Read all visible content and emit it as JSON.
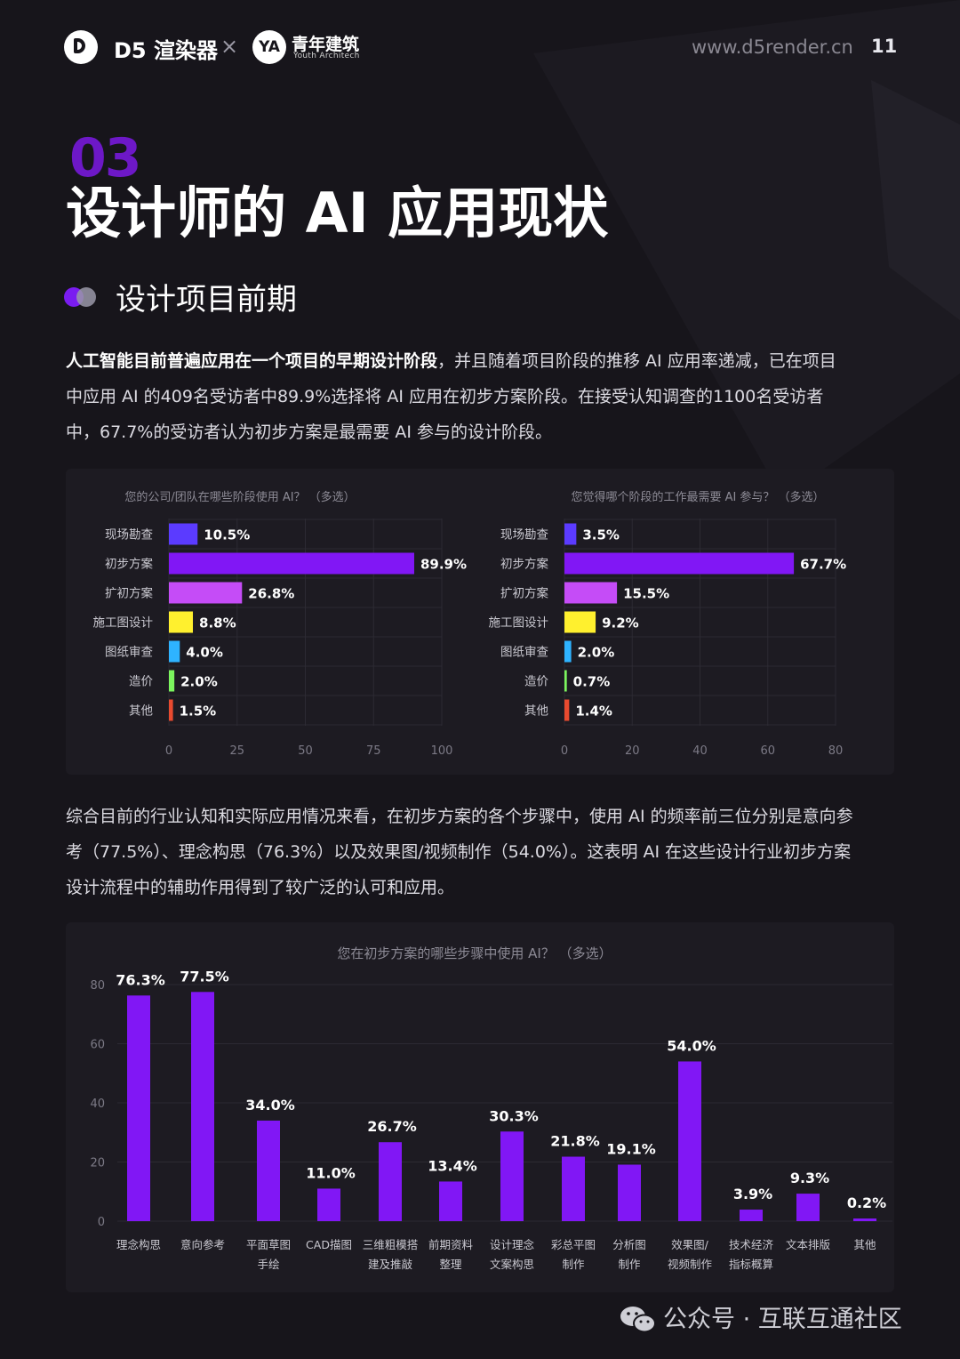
{
  "header": {
    "brand_d5": "D5 渲染器",
    "cross": "×",
    "logo_ya": "YA",
    "brand_ya": "青年建筑",
    "brand_ya_sub": "Youth Architech",
    "url": "www.d5render.cn",
    "page_number": "11"
  },
  "section": {
    "number": "03",
    "title": "设计师的 AI 应用现状",
    "subtitle": "设计项目前期"
  },
  "paragraph1": {
    "bold": "人工智能目前普遍应用在一个项目的早期设计阶段",
    "line1_rest": "，并且随着项目阶段的推移 AI 应用率递减，已在项目",
    "line2": "中应用 AI 的409名受访者中89.9%选择将 AI 应用在初步方案阶段。在接受认知调查的1100名受访者",
    "line3": "中，67.7%的受访者认为初步方案是最需要 AI 参与的设计阶段。"
  },
  "paragraph2": {
    "line1": "综合目前的行业认知和实际应用情况来看，在初步方案的各个步骤中，使用 AI 的频率前三位分别是意向参",
    "line2": "考（77.5%）、理念构思（76.3%）以及效果图/视频制作（54.0%）。这表明 AI 在这些设计行业初步方案",
    "line3": "设计流程中的辅助作用得到了较广泛的认可和应用。"
  },
  "footer": {
    "text": "公众号 · 互联互通社区"
  },
  "colors": {
    "background": "#17151b",
    "card": "#1d1b22",
    "accent_purple": "#8117f5",
    "violet": "#5b3bff",
    "magenta": "#c54cf7",
    "yellow": "#fff02e",
    "cyan": "#2eb3ff",
    "green": "#7cf55e",
    "red": "#e84a2f"
  },
  "chart_data": [
    {
      "type": "bar",
      "orientation": "horizontal",
      "title": "您的公司/团队在哪些阶段使用 AI？ （多选）",
      "categories": [
        "现场勘查",
        "初步方案",
        "扩初方案",
        "施工图设计",
        "图纸审查",
        "造价",
        "其他"
      ],
      "values": [
        10.5,
        89.9,
        26.8,
        8.8,
        4.0,
        2.0,
        1.5
      ],
      "labels": [
        "10.5%",
        "89.9%",
        "26.8%",
        "8.8%",
        "4.0%",
        "2.0%",
        "1.5%"
      ],
      "bar_colors": [
        "#5b3bff",
        "#8117f5",
        "#c54cf7",
        "#fff02e",
        "#2eb3ff",
        "#7cf55e",
        "#e84a2f"
      ],
      "xlim": [
        0,
        100
      ],
      "xticks": [
        0,
        25,
        50,
        75,
        100
      ],
      "grid": true
    },
    {
      "type": "bar",
      "orientation": "horizontal",
      "title": "您觉得哪个阶段的工作最需要 AI 参与？ （多选）",
      "categories": [
        "现场勘查",
        "初步方案",
        "扩初方案",
        "施工图设计",
        "图纸审查",
        "造价",
        "其他"
      ],
      "values": [
        3.5,
        67.7,
        15.5,
        9.2,
        2.0,
        0.7,
        1.4
      ],
      "labels": [
        "3.5%",
        "67.7%",
        "15.5%",
        "9.2%",
        "2.0%",
        "0.7%",
        "1.4%"
      ],
      "bar_colors": [
        "#5b3bff",
        "#8117f5",
        "#c54cf7",
        "#fff02e",
        "#2eb3ff",
        "#7cf55e",
        "#e84a2f"
      ],
      "xlim": [
        0,
        80
      ],
      "xticks": [
        0,
        20,
        40,
        60,
        80
      ],
      "grid": true
    },
    {
      "type": "bar",
      "orientation": "vertical",
      "title": "您在初步方案的哪些步骤中使用 AI？ （多选）",
      "categories": [
        [
          "理念构思"
        ],
        [
          "意向参考"
        ],
        [
          "平面草图",
          "手绘"
        ],
        [
          "CAD描图"
        ],
        [
          "三维粗模搭",
          "建及推敲"
        ],
        [
          "前期资料",
          "整理"
        ],
        [
          "设计理念",
          "文案构思"
        ],
        [
          "彩总平图",
          "制作"
        ],
        [
          "分析图",
          "制作"
        ],
        [
          "效果图/",
          "视频制作"
        ],
        [
          "技术经济",
          "指标概算"
        ],
        [
          "文本排版"
        ],
        [
          "其他"
        ]
      ],
      "values": [
        76.3,
        77.5,
        34.0,
        11.0,
        26.7,
        13.4,
        30.3,
        21.8,
        19.1,
        54.0,
        3.9,
        9.3,
        0.2
      ],
      "labels": [
        "76.3%",
        "77.5%",
        "34.0%",
        "11.0%",
        "26.7%",
        "13.4%",
        "30.3%",
        "21.8%",
        "19.1%",
        "54.0%",
        "3.9%",
        "9.3%",
        "0.2%"
      ],
      "bar_color": "#8117f5",
      "ylim": [
        0,
        80
      ],
      "yticks": [
        0,
        20,
        40,
        60,
        80
      ],
      "grid": true
    }
  ]
}
